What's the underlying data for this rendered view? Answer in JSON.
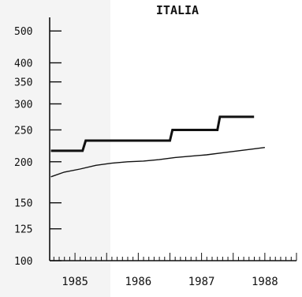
{
  "chart_data": {
    "type": "line",
    "title": "ITALIA",
    "xlabel": "",
    "ylabel": "",
    "y_scale": "log",
    "ylim": [
      100,
      550
    ],
    "xlim": [
      1984.6,
      1988.5
    ],
    "y_ticks": [
      {
        "value": 500,
        "label": "500"
      },
      {
        "value": 400,
        "label": "400"
      },
      {
        "value": 350,
        "label": "350"
      },
      {
        "value": 300,
        "label": "300"
      },
      {
        "value": 250,
        "label": "250"
      },
      {
        "value": 200,
        "label": "200"
      },
      {
        "value": 150,
        "label": "150"
      },
      {
        "value": 125,
        "label": "125"
      },
      {
        "value": 100,
        "label": "100"
      }
    ],
    "x_ticks": [
      {
        "value": 1985,
        "label": "1985"
      },
      {
        "value": 1986,
        "label": "1986"
      },
      {
        "value": 1987,
        "label": "1987"
      },
      {
        "value": 1988,
        "label": "1988"
      }
    ],
    "x_minor_ticks_per_year": 12,
    "grid": false,
    "legend": "none",
    "series": [
      {
        "style": "step",
        "color": "#111111",
        "points": [
          [
            1984.62,
            216
          ],
          [
            1985.12,
            216
          ],
          [
            1985.17,
            232
          ],
          [
            1986.5,
            232
          ],
          [
            1986.54,
            250
          ],
          [
            1987.25,
            250
          ],
          [
            1987.29,
            274
          ],
          [
            1987.83,
            274
          ]
        ]
      },
      {
        "style": "line",
        "color": "#111111",
        "points": [
          [
            1984.62,
            180
          ],
          [
            1984.83,
            186
          ],
          [
            1985.08,
            190
          ],
          [
            1985.33,
            195
          ],
          [
            1985.58,
            198
          ],
          [
            1985.83,
            200
          ],
          [
            1986.08,
            201
          ],
          [
            1986.33,
            203
          ],
          [
            1986.58,
            206
          ],
          [
            1986.83,
            208
          ],
          [
            1987.08,
            210
          ],
          [
            1987.33,
            213
          ],
          [
            1987.58,
            216
          ],
          [
            1987.83,
            219
          ],
          [
            1988.0,
            221
          ]
        ]
      }
    ]
  }
}
